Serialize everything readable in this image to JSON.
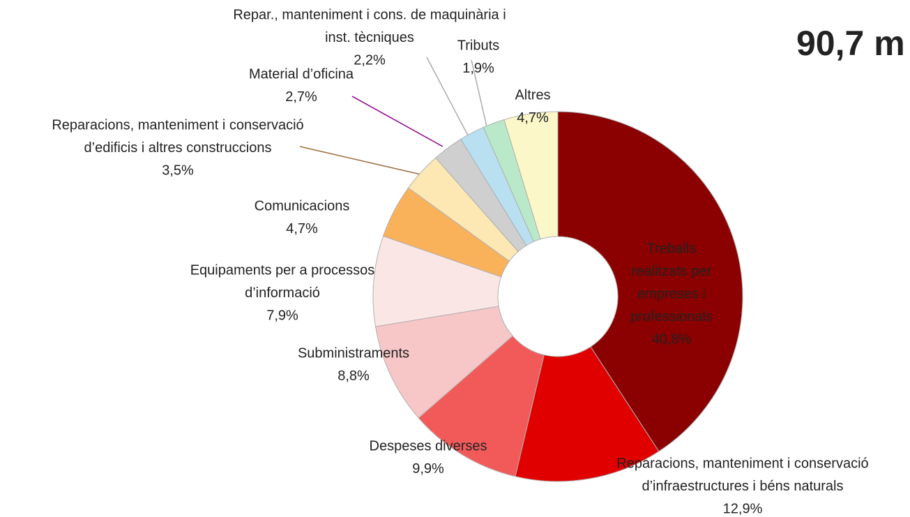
{
  "chart_data": {
    "type": "donut",
    "title": "90,7 m",
    "categories": [
      [
        "Treballs",
        "realitzats per",
        "empreses i",
        "professionals"
      ],
      [
        "Reparacions, manteniment i conservació",
        "d’infraestructures i béns naturals"
      ],
      [
        "Despeses diverses"
      ],
      [
        "Subministraments"
      ],
      [
        "Equipaments per a processos",
        "d’informació"
      ],
      [
        "Comunicacions"
      ],
      [
        "Reparacions, manteniment i conservació",
        "d’edificis i altres construccions"
      ],
      [
        "Material d’oficina"
      ],
      [
        "Repar., manteniment i cons. de maquinària i",
        "inst. tècniques"
      ],
      [
        "Tributs"
      ],
      [
        "Altres"
      ]
    ],
    "values": [
      40.8,
      12.9,
      9.9,
      8.8,
      7.9,
      4.7,
      3.5,
      2.7,
      2.2,
      1.9,
      4.7
    ],
    "value_labels": [
      "40,8%",
      "12,9%",
      "9,9%",
      "8,8%",
      "7,9%",
      "4,7%",
      "3,5%",
      "2,7%",
      "2,2%",
      "1,9%",
      "4,7%"
    ],
    "colors": [
      "#8b0000",
      "#e00000",
      "#f25a5a",
      "#f7c6c6",
      "#fbe6e6",
      "#f9b25a",
      "#fde7b2",
      "#cfcfcf",
      "#b9e0f1",
      "#b9e9c9",
      "#fbf7c9"
    ]
  }
}
